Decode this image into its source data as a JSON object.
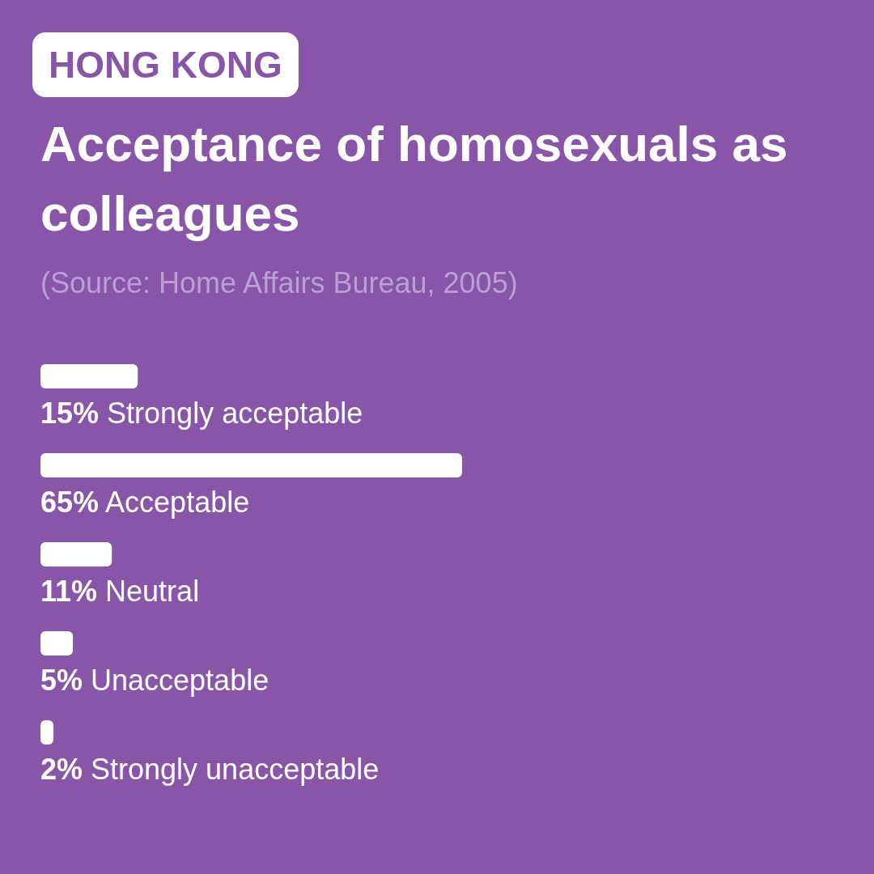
{
  "chart_data": {
    "type": "bar",
    "orientation": "horizontal",
    "title": "Acceptance of homosexuals as colleagues",
    "annotations": [
      "HONG KONG",
      "(Source: Home Affairs Bureau, 2005)"
    ],
    "categories": [
      "Strongly acceptable",
      "Acceptable",
      "Neutral",
      "Unacceptable",
      "Strongly unacceptable"
    ],
    "values": [
      15,
      65,
      11,
      5,
      2
    ],
    "value_labels": [
      "15%",
      "65%",
      "11%",
      "5%",
      "2%"
    ],
    "color": "#ffffff"
  }
}
